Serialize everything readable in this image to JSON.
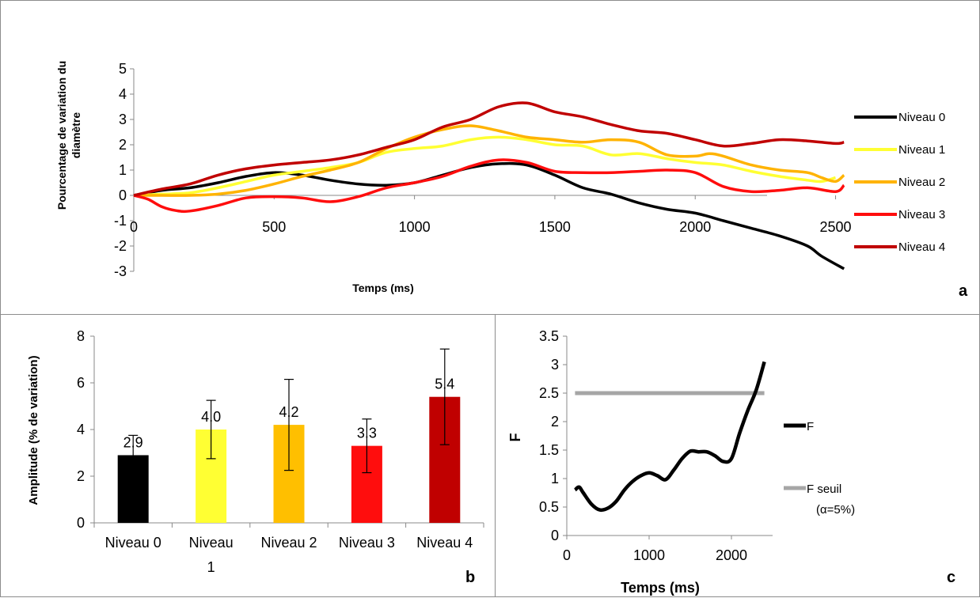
{
  "panels": {
    "a": {
      "letter": "a",
      "chart_type": "line",
      "xlabel": "Temps (ms)",
      "ylabel": "Pourcentage de variation du diamètre",
      "ylabel_lines": [
        "Pourcentage de variation du",
        "diamètre"
      ],
      "xlim": [
        0,
        2600
      ],
      "ylim": [
        -3,
        5
      ],
      "xticks": [
        "0",
        "500",
        "1000",
        "1500",
        "2000",
        "2500"
      ],
      "yticks": [
        "5",
        "4",
        "3",
        "2",
        "1",
        "0",
        "-1",
        "-2",
        "-3"
      ],
      "legend_position": "right"
    },
    "b": {
      "letter": "b",
      "chart_type": "bar",
      "ylabel": "Amplitude (% de variation)",
      "ylim": [
        0,
        8
      ],
      "yticks": [
        "8",
        "6",
        "4",
        "2",
        "0"
      ],
      "category_lines": [
        [
          "Niveau 0"
        ],
        [
          "Niveau",
          "1"
        ],
        [
          "Niveau 2"
        ],
        [
          "Niveau 3"
        ],
        [
          "Niveau 4"
        ]
      ]
    },
    "c": {
      "letter": "c",
      "chart_type": "line",
      "xlabel": "Temps (ms)",
      "ylabel": "F",
      "xlim": [
        0,
        2500
      ],
      "ylim": [
        0,
        3.5
      ],
      "xticks": [
        "0",
        "1000",
        "2000"
      ],
      "yticks": [
        "3.5",
        "3",
        "2.5",
        "2",
        "1.5",
        "1",
        "0.5",
        "0"
      ],
      "legend_labels": [
        "F",
        "F seuil",
        "(α=5%)"
      ]
    }
  },
  "chart_data": [
    {
      "type": "line",
      "xlabel": "Temps (ms)",
      "ylabel": "Pourcentage de variation du diamètre",
      "xlim": [
        0,
        2600
      ],
      "ylim": [
        -3,
        5
      ],
      "legend": "right",
      "series": [
        {
          "name": "Niveau 0",
          "color": "#000000",
          "points": [
            [
              0,
              0
            ],
            [
              100,
              0.2
            ],
            [
              200,
              0.3
            ],
            [
              300,
              0.5
            ],
            [
              400,
              0.75
            ],
            [
              500,
              0.9
            ],
            [
              600,
              0.8
            ],
            [
              700,
              0.6
            ],
            [
              800,
              0.45
            ],
            [
              900,
              0.4
            ],
            [
              1000,
              0.5
            ],
            [
              1100,
              0.8
            ],
            [
              1200,
              1.1
            ],
            [
              1300,
              1.25
            ],
            [
              1400,
              1.2
            ],
            [
              1500,
              0.8
            ],
            [
              1600,
              0.3
            ],
            [
              1700,
              0.05
            ],
            [
              1800,
              -0.3
            ],
            [
              1900,
              -0.55
            ],
            [
              2000,
              -0.7
            ],
            [
              2100,
              -1.0
            ],
            [
              2200,
              -1.3
            ],
            [
              2300,
              -1.6
            ],
            [
              2400,
              -2.0
            ],
            [
              2450,
              -2.4
            ],
            [
              2530,
              -2.9
            ]
          ]
        },
        {
          "name": "Niveau 1",
          "color": "#ffff33",
          "points": [
            [
              0,
              0
            ],
            [
              100,
              0.05
            ],
            [
              200,
              0.1
            ],
            [
              300,
              0.3
            ],
            [
              400,
              0.55
            ],
            [
              500,
              0.8
            ],
            [
              600,
              0.95
            ],
            [
              700,
              1.1
            ],
            [
              800,
              1.3
            ],
            [
              900,
              1.7
            ],
            [
              1000,
              1.85
            ],
            [
              1100,
              1.95
            ],
            [
              1200,
              2.2
            ],
            [
              1300,
              2.3
            ],
            [
              1400,
              2.2
            ],
            [
              1500,
              2.0
            ],
            [
              1600,
              1.95
            ],
            [
              1700,
              1.6
            ],
            [
              1800,
              1.65
            ],
            [
              1900,
              1.45
            ],
            [
              2000,
              1.3
            ],
            [
              2100,
              1.2
            ],
            [
              2200,
              0.95
            ],
            [
              2300,
              0.75
            ],
            [
              2400,
              0.6
            ],
            [
              2450,
              0.55
            ],
            [
              2500,
              0.7
            ]
          ]
        },
        {
          "name": "Niveau 2",
          "color": "#ffb300",
          "points": [
            [
              0,
              0
            ],
            [
              100,
              0
            ],
            [
              200,
              0
            ],
            [
              300,
              0.05
            ],
            [
              400,
              0.2
            ],
            [
              500,
              0.45
            ],
            [
              600,
              0.75
            ],
            [
              700,
              1.0
            ],
            [
              800,
              1.3
            ],
            [
              900,
              1.85
            ],
            [
              1000,
              2.3
            ],
            [
              1100,
              2.6
            ],
            [
              1200,
              2.75
            ],
            [
              1300,
              2.55
            ],
            [
              1400,
              2.3
            ],
            [
              1500,
              2.2
            ],
            [
              1600,
              2.1
            ],
            [
              1700,
              2.2
            ],
            [
              1800,
              2.1
            ],
            [
              1900,
              1.6
            ],
            [
              2000,
              1.55
            ],
            [
              2050,
              1.65
            ],
            [
              2100,
              1.55
            ],
            [
              2200,
              1.2
            ],
            [
              2300,
              1.0
            ],
            [
              2400,
              0.9
            ],
            [
              2450,
              0.7
            ],
            [
              2500,
              0.55
            ],
            [
              2530,
              0.8
            ]
          ]
        },
        {
          "name": "Niveau 3",
          "color": "#ff0d0d",
          "points": [
            [
              0,
              0
            ],
            [
              50,
              -0.15
            ],
            [
              100,
              -0.45
            ],
            [
              150,
              -0.6
            ],
            [
              200,
              -0.62
            ],
            [
              300,
              -0.4
            ],
            [
              400,
              -0.1
            ],
            [
              500,
              -0.05
            ],
            [
              600,
              -0.1
            ],
            [
              700,
              -0.25
            ],
            [
              800,
              -0.05
            ],
            [
              900,
              0.3
            ],
            [
              1000,
              0.5
            ],
            [
              1100,
              0.75
            ],
            [
              1200,
              1.15
            ],
            [
              1300,
              1.4
            ],
            [
              1400,
              1.3
            ],
            [
              1500,
              0.95
            ],
            [
              1600,
              0.9
            ],
            [
              1700,
              0.9
            ],
            [
              1800,
              0.95
            ],
            [
              1900,
              1.0
            ],
            [
              2000,
              0.9
            ],
            [
              2100,
              0.35
            ],
            [
              2200,
              0.15
            ],
            [
              2300,
              0.2
            ],
            [
              2400,
              0.3
            ],
            [
              2500,
              0.15
            ],
            [
              2530,
              0.4
            ]
          ]
        },
        {
          "name": "Niveau 4",
          "color": "#c00000",
          "points": [
            [
              0,
              0
            ],
            [
              100,
              0.25
            ],
            [
              200,
              0.45
            ],
            [
              300,
              0.8
            ],
            [
              400,
              1.05
            ],
            [
              500,
              1.2
            ],
            [
              600,
              1.3
            ],
            [
              700,
              1.4
            ],
            [
              800,
              1.6
            ],
            [
              900,
              1.9
            ],
            [
              1000,
              2.2
            ],
            [
              1100,
              2.7
            ],
            [
              1200,
              3.0
            ],
            [
              1300,
              3.5
            ],
            [
              1400,
              3.65
            ],
            [
              1500,
              3.3
            ],
            [
              1600,
              3.1
            ],
            [
              1700,
              2.8
            ],
            [
              1800,
              2.55
            ],
            [
              1900,
              2.45
            ],
            [
              2000,
              2.2
            ],
            [
              2100,
              1.95
            ],
            [
              2200,
              2.05
            ],
            [
              2300,
              2.2
            ],
            [
              2400,
              2.15
            ],
            [
              2500,
              2.05
            ],
            [
              2530,
              2.1
            ]
          ]
        }
      ]
    },
    {
      "type": "bar",
      "ylabel": "Amplitude (% de variation)",
      "ylim": [
        0,
        8
      ],
      "categories": [
        "Niveau 0",
        "Niveau 1",
        "Niveau 2",
        "Niveau 3",
        "Niveau 4"
      ],
      "values": [
        2.9,
        4.0,
        4.2,
        3.3,
        5.4
      ],
      "value_labels": [
        "2.9",
        "4.0",
        "4.2",
        "3.3",
        "5.4"
      ],
      "error_low": [
        0.85,
        1.25,
        1.95,
        1.15,
        2.05
      ],
      "error_high": [
        0.85,
        1.25,
        1.95,
        1.15,
        2.05
      ],
      "colors": [
        "#000000",
        "#ffff33",
        "#ffbf00",
        "#ff0d0d",
        "#c00000"
      ]
    },
    {
      "type": "line",
      "xlabel": "Temps (ms)",
      "ylabel": "F",
      "xlim": [
        0,
        2500
      ],
      "ylim": [
        0,
        3.5
      ],
      "legend": "right",
      "series": [
        {
          "name": "F",
          "color": "#000000",
          "points": [
            [
              100,
              0.8
            ],
            [
              150,
              0.85
            ],
            [
              200,
              0.75
            ],
            [
              300,
              0.55
            ],
            [
              400,
              0.45
            ],
            [
              500,
              0.48
            ],
            [
              600,
              0.6
            ],
            [
              700,
              0.8
            ],
            [
              800,
              0.95
            ],
            [
              900,
              1.05
            ],
            [
              1000,
              1.1
            ],
            [
              1100,
              1.05
            ],
            [
              1200,
              0.98
            ],
            [
              1300,
              1.15
            ],
            [
              1400,
              1.35
            ],
            [
              1500,
              1.48
            ],
            [
              1600,
              1.47
            ],
            [
              1700,
              1.47
            ],
            [
              1800,
              1.4
            ],
            [
              1900,
              1.3
            ],
            [
              2000,
              1.35
            ],
            [
              2100,
              1.8
            ],
            [
              2200,
              2.2
            ],
            [
              2300,
              2.55
            ],
            [
              2400,
              3.05
            ]
          ]
        },
        {
          "name": "F seuil (α=5%)",
          "color": "#a6a6a6",
          "points": [
            [
              100,
              2.5
            ],
            [
              2400,
              2.5
            ]
          ]
        }
      ]
    }
  ]
}
